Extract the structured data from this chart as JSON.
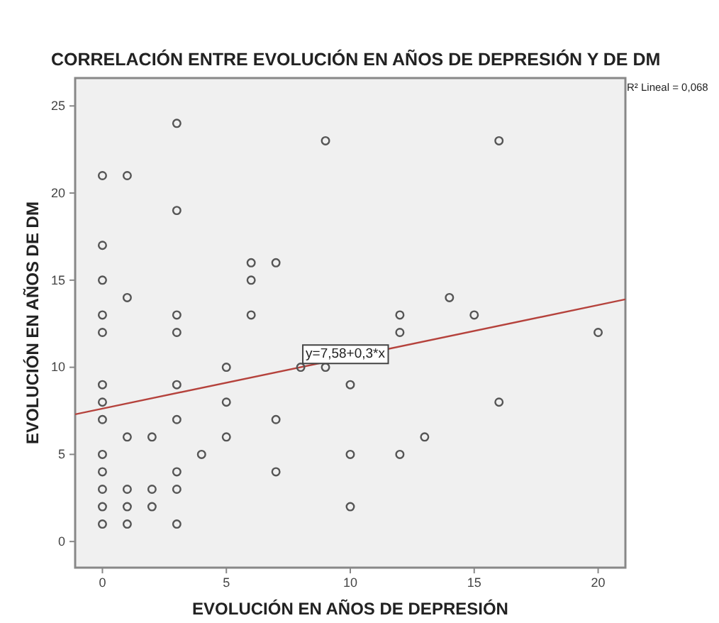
{
  "chart_data": {
    "type": "scatter",
    "title": "CORRELACIÓN ENTRE EVOLUCIÓN EN AÑOS DE DEPRESIÓN Y DE DM",
    "xlabel": "EVOLUCIÓN EN AÑOS DE DEPRESIÓN",
    "ylabel": "EVOLUCIÓN EN AÑOS DE DM",
    "xlim": [
      -1.1,
      21.1
    ],
    "ylim": [
      -1.5,
      26.6
    ],
    "xticks": [
      0,
      5,
      10,
      15,
      20
    ],
    "yticks": [
      0,
      5,
      10,
      15,
      20,
      25
    ],
    "grid": false,
    "marker": "circle",
    "annotations": [
      "R² Lineal = 0,068",
      {
        "text": "y=7,58+0,3*x",
        "x": 9,
        "y": 10.3
      }
    ],
    "series": [
      {
        "color": "#555555",
        "x": [
          0,
          0,
          0,
          0,
          0,
          0,
          0,
          0,
          0,
          0,
          0,
          0,
          0,
          1,
          1,
          1,
          1,
          1,
          1,
          2,
          2,
          2,
          3,
          3,
          3,
          3,
          3,
          3,
          3,
          3,
          3,
          4,
          5,
          5,
          5,
          6,
          6,
          6,
          7,
          7,
          7,
          8,
          9,
          9,
          10,
          10,
          10,
          12,
          12,
          12,
          13,
          14,
          15,
          16,
          16,
          20
        ],
        "values": [
          21,
          17,
          15,
          13,
          12,
          9,
          8,
          7,
          5,
          4,
          3,
          2,
          1,
          21,
          14,
          6,
          3,
          2,
          1,
          6,
          3,
          2,
          24,
          19,
          13,
          12,
          9,
          7,
          4,
          3,
          1,
          5,
          10,
          8,
          6,
          16,
          15,
          13,
          16,
          7,
          4,
          10,
          23,
          10,
          9,
          5,
          2,
          13,
          12,
          5,
          6,
          14,
          13,
          23,
          8,
          12
        ]
      },
      {
        "type": "line",
        "color": "#b5423c",
        "marker": "none",
        "x": [
          -1.1,
          21.1
        ],
        "values": [
          7.3,
          13.9
        ]
      }
    ]
  }
}
